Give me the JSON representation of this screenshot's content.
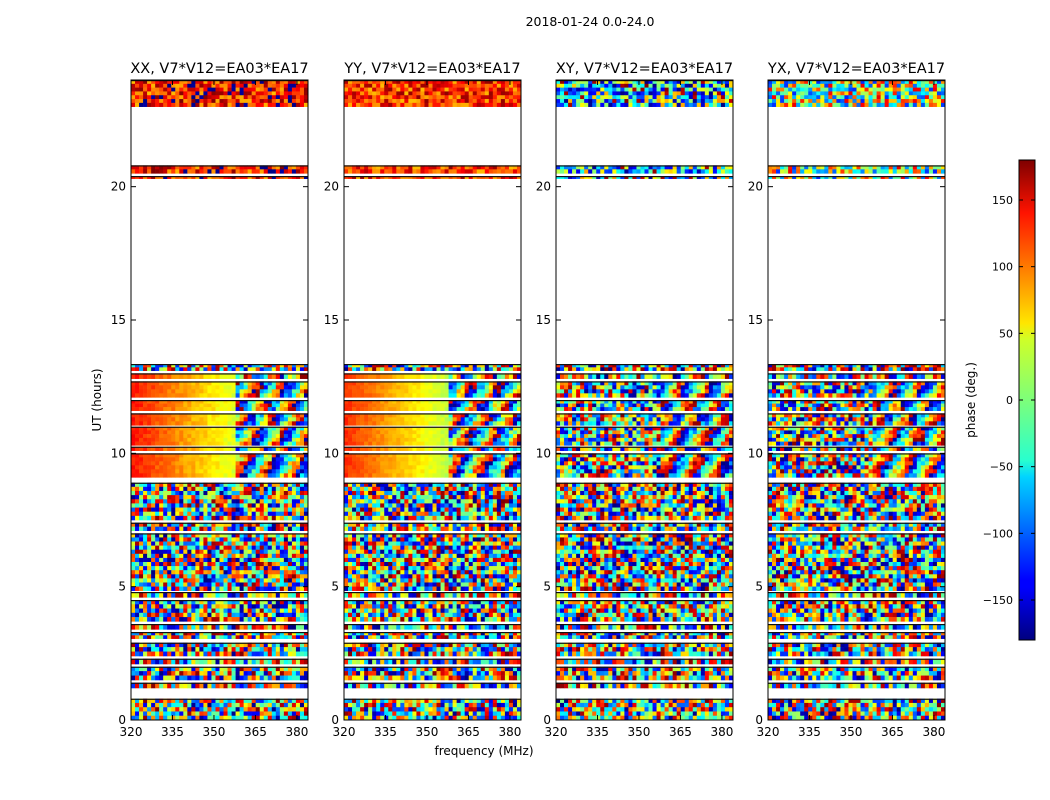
{
  "suptitle": "2018-01-24 0.0-24.0",
  "chart_data": [
    {
      "type": "heatmap",
      "title": "XX, V7*V12=EA03*EA17",
      "xlabel": "",
      "ylabel": "UT (hours)",
      "xlim": [
        320,
        384
      ],
      "ylim": [
        0,
        24
      ],
      "xticks": [
        "320",
        "335",
        "350",
        "365",
        "380"
      ],
      "yticks": [
        "0",
        "5",
        "10",
        "15",
        "20"
      ],
      "base_phase": 130,
      "noise_level": 0.35,
      "low_freq_coherent": true
    },
    {
      "type": "heatmap",
      "title": "YY, V7*V12=EA03*EA17",
      "xlabel": "frequency (MHz)",
      "ylabel": "",
      "xlim": [
        320,
        384
      ],
      "ylim": [
        0,
        24
      ],
      "xticks": [
        "320",
        "335",
        "350",
        "365",
        "380"
      ],
      "yticks": [
        "0",
        "5",
        "10",
        "15",
        "20"
      ],
      "base_phase": 120,
      "noise_level": 0.3,
      "low_freq_coherent": true
    },
    {
      "type": "heatmap",
      "title": "XY, V7*V12=EA03*EA17",
      "xlabel": "",
      "ylabel": "",
      "xlim": [
        320,
        384
      ],
      "ylim": [
        0,
        24
      ],
      "xticks": [
        "320",
        "335",
        "350",
        "365",
        "380"
      ],
      "yticks": [
        "0",
        "5",
        "10",
        "15",
        "20"
      ],
      "base_phase": -60,
      "noise_level": 0.8,
      "low_freq_coherent": false
    },
    {
      "type": "heatmap",
      "title": "YX, V7*V12=EA03*EA17",
      "xlabel": "",
      "ylabel": "",
      "xlim": [
        320,
        384
      ],
      "ylim": [
        0,
        24
      ],
      "xticks": [
        "320",
        "335",
        "350",
        "365",
        "380"
      ],
      "yticks": [
        "0",
        "5",
        "10",
        "15",
        "20"
      ],
      "base_phase": 10,
      "noise_level": 0.75,
      "low_freq_coherent": false
    }
  ],
  "observation_blocks_hours": [
    [
      0.0,
      0.8
    ],
    [
      1.2,
      1.4
    ],
    [
      1.5,
      2.0
    ],
    [
      2.1,
      2.3
    ],
    [
      2.4,
      2.9
    ],
    [
      3.05,
      3.3
    ],
    [
      3.4,
      3.6
    ],
    [
      3.7,
      4.5
    ],
    [
      4.6,
      4.8
    ],
    [
      4.85,
      7.0
    ],
    [
      7.1,
      7.4
    ],
    [
      7.5,
      8.9
    ],
    [
      9.1,
      10.0
    ],
    [
      10.1,
      10.25
    ],
    [
      10.3,
      11.0
    ],
    [
      11.05,
      11.5
    ],
    [
      11.6,
      12.0
    ],
    [
      12.1,
      12.7
    ],
    [
      12.8,
      13.0
    ],
    [
      13.1,
      13.35
    ],
    [
      20.3,
      20.4
    ],
    [
      20.5,
      20.8
    ],
    [
      23.0,
      24.0
    ]
  ],
  "colorbar": {
    "label": "phase (deg.)",
    "range": [
      -180,
      180
    ],
    "ticks": [
      "−150",
      "−100",
      "−50",
      "0",
      "50",
      "100",
      "150"
    ],
    "tick_values": [
      -150,
      -100,
      -50,
      0,
      50,
      100,
      150
    ],
    "colormap": "jet"
  }
}
